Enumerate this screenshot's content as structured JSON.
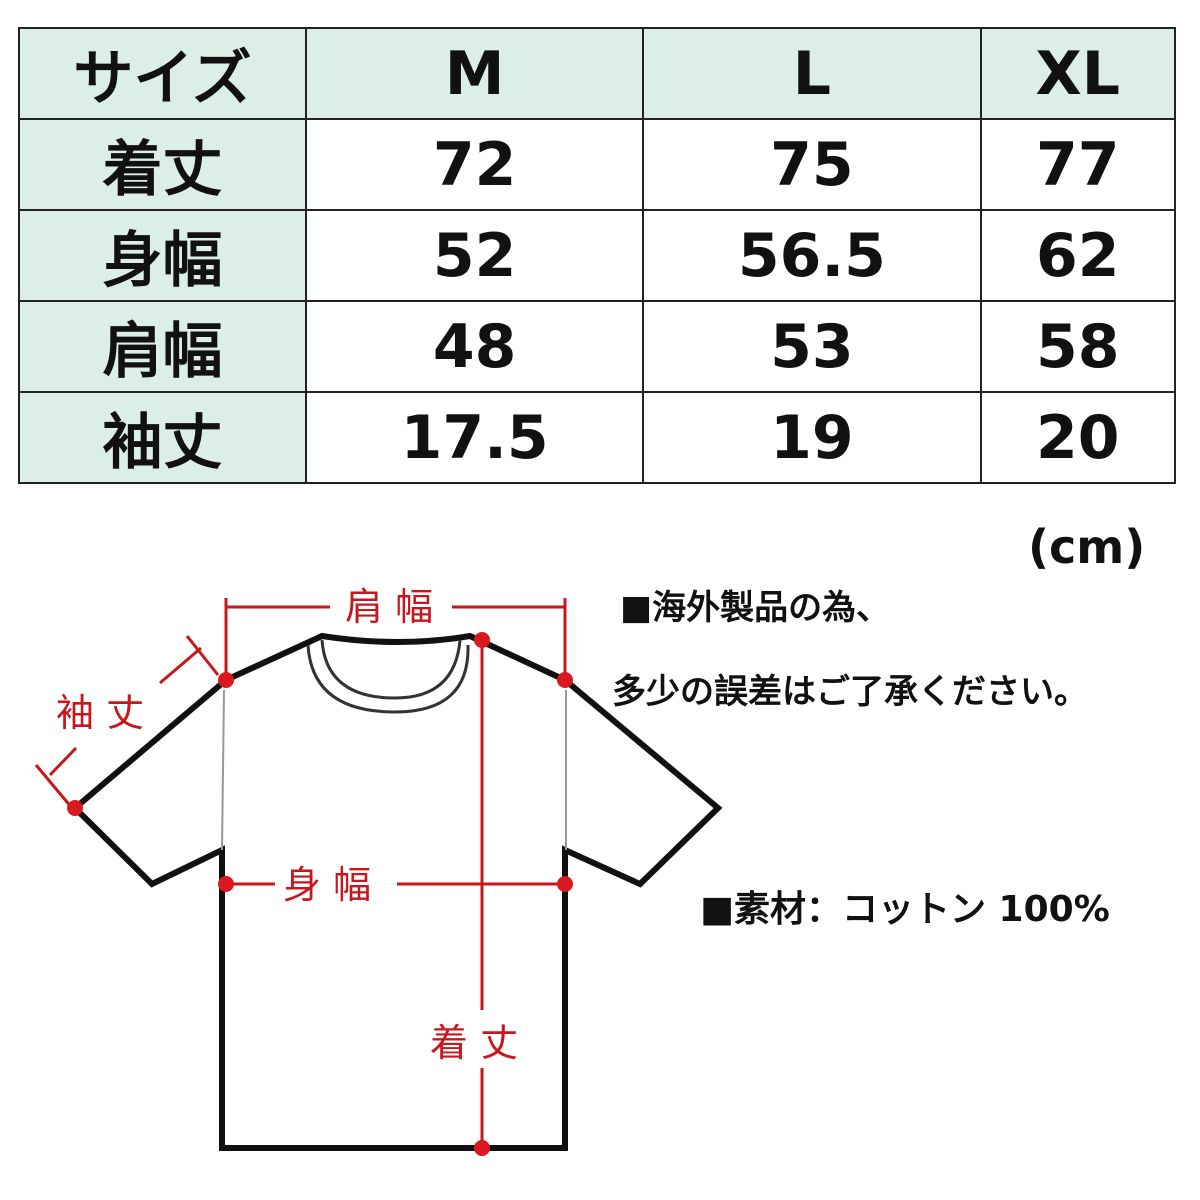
{
  "table": {
    "header": [
      "サイズ",
      "M",
      "L",
      "XL"
    ],
    "rows": [
      {
        "label": "着丈",
        "values": [
          "72",
          "75",
          "77"
        ]
      },
      {
        "label": "身幅",
        "values": [
          "52",
          "56.5",
          "62"
        ]
      },
      {
        "label": "肩幅",
        "values": [
          "48",
          "53",
          "58"
        ]
      },
      {
        "label": "袖丈",
        "values": [
          "17.5",
          "19",
          "20"
        ]
      }
    ]
  },
  "unit": "(cm)",
  "notes": {
    "line1": "■海外製品の為、",
    "line2": "多少の誤差はご了承ください。",
    "material": "■素材：コットン 100%"
  },
  "diagram": {
    "shoulder": "肩 幅",
    "sleeve": "袖 丈",
    "chest": "身 幅",
    "length": "着 丈"
  },
  "colors": {
    "header_bg": "#dcefe7",
    "measure_red": "#c8161d"
  }
}
